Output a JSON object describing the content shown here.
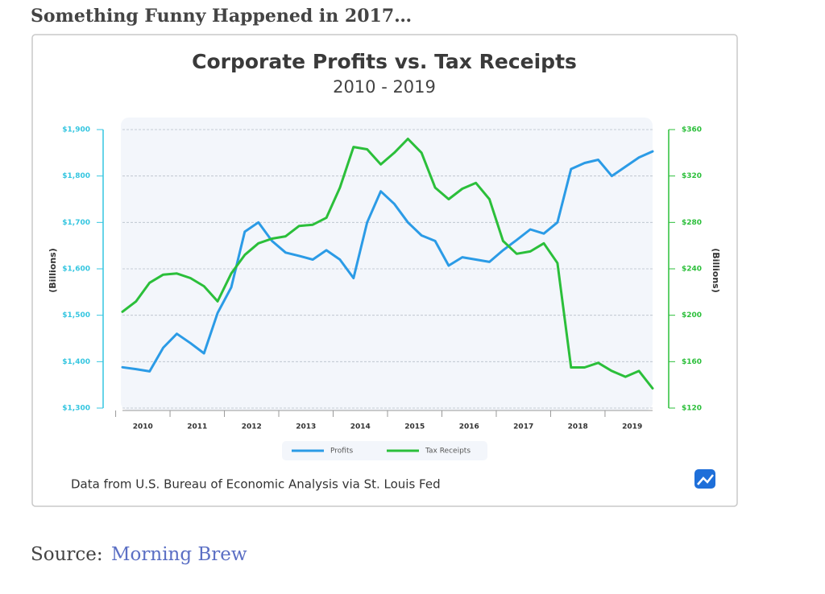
{
  "heading": "Something Funny Happened in 2017…",
  "source": {
    "label": "Source:",
    "link": "Morning Brew"
  },
  "chart_data": {
    "type": "line",
    "title": "Corporate Profits vs. Tax Receipts",
    "subtitle": "2010 - 2019",
    "y_label": "(Billions)",
    "y2_label": "(Billions)",
    "note": "Data from U.S. Bureau of Economic Analysis via St. Louis Fed",
    "categories": [
      null,
      "2010",
      null,
      null,
      null,
      "2011",
      null,
      null,
      null,
      "2012",
      null,
      null,
      null,
      "2013",
      null,
      null,
      null,
      "2014",
      null,
      null,
      null,
      "2015",
      null,
      null,
      null,
      "2016",
      null,
      null,
      null,
      "2017",
      null,
      null,
      null,
      "2018",
      null,
      null,
      null,
      "2019",
      null,
      null
    ],
    "series": [
      {
        "name": "Profits",
        "color": "#2b9be6",
        "axis": "y",
        "values": [
          1388,
          1384,
          1379,
          1430,
          1460,
          1440,
          1418,
          1505,
          1560,
          1680,
          1700,
          1660,
          1635,
          1628,
          1620,
          1640,
          1620,
          1580,
          1700,
          1767,
          1740,
          1700,
          1672,
          1660,
          1607,
          1625,
          1620,
          1615,
          1640,
          1662,
          1685,
          1676,
          1700,
          1815,
          1828,
          1835,
          1800,
          1820,
          1840,
          1853
        ]
      },
      {
        "name": "Tax Receipts",
        "color": "#2bbf3a",
        "axis": "y2",
        "values": [
          203,
          212,
          228,
          235,
          236,
          232,
          225,
          212,
          236,
          252,
          262,
          266,
          268,
          277,
          278,
          284,
          310,
          345,
          343,
          330,
          340,
          352,
          340,
          310,
          300,
          309,
          314,
          300,
          264,
          253,
          255,
          262,
          245,
          155,
          155,
          159,
          152,
          147,
          152,
          137
        ]
      }
    ],
    "ylim": [
      1300,
      1900
    ],
    "yticks": [
      {
        "value": 1300,
        "label": "$1,300"
      },
      {
        "value": 1400,
        "label": "$1,400"
      },
      {
        "value": 1500,
        "label": "$1,500"
      },
      {
        "value": 1600,
        "label": "$1,600"
      },
      {
        "value": 1700,
        "label": "$1,700"
      },
      {
        "value": 1800,
        "label": "$1,800"
      },
      {
        "value": 1900,
        "label": "$1,900"
      }
    ],
    "y2lim": [
      120,
      360
    ],
    "y2ticks": [
      {
        "value": 120,
        "label": "$120"
      },
      {
        "value": 160,
        "label": "$160"
      },
      {
        "value": 200,
        "label": "$200"
      },
      {
        "value": 240,
        "label": "$240"
      },
      {
        "value": 280,
        "label": "$280"
      },
      {
        "value": 320,
        "label": "$320"
      },
      {
        "value": 360,
        "label": "$360"
      }
    ],
    "grid": true,
    "legend": "bottom"
  }
}
